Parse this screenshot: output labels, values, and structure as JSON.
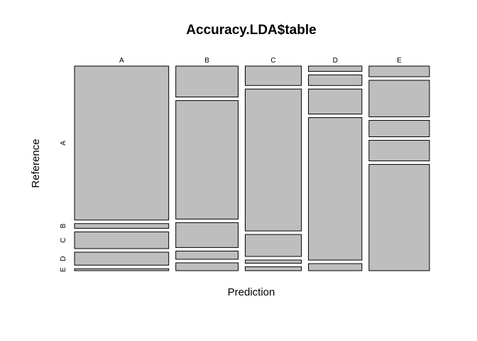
{
  "chart_data": {
    "type": "mosaic",
    "title": "Accuracy.LDA$table",
    "xlabel": "Prediction",
    "ylabel": "Reference",
    "x_categories": [
      "A",
      "B",
      "C",
      "D",
      "E"
    ],
    "y_categories": [
      "A",
      "B",
      "C",
      "D",
      "E"
    ],
    "column_proportions": [
      0.349,
      0.231,
      0.208,
      0.198,
      0.224
    ],
    "conditional_proportions": {
      "A": [
        0.782,
        0.024,
        0.085,
        0.066,
        0.01
      ],
      "B": [
        0.158,
        0.605,
        0.127,
        0.042,
        0.04
      ],
      "C": [
        0.09,
        0.659,
        0.102,
        0.015,
        0.018
      ],
      "D": [
        0.027,
        0.054,
        0.128,
        0.728,
        0.036
      ],
      "E": [
        0.056,
        0.192,
        0.086,
        0.108,
        0.558
      ]
    }
  }
}
